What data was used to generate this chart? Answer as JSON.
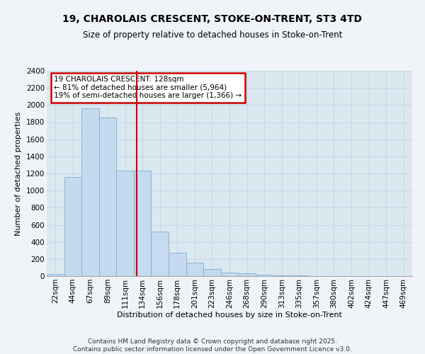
{
  "title_line1": "19, CHAROLAIS CRESCENT, STOKE-ON-TRENT, ST3 4TD",
  "title_line2": "Size of property relative to detached houses in Stoke-on-Trent",
  "xlabel": "Distribution of detached houses by size in Stoke-on-Trent",
  "ylabel": "Number of detached properties",
  "categories": [
    "22sqm",
    "44sqm",
    "67sqm",
    "89sqm",
    "111sqm",
    "134sqm",
    "156sqm",
    "178sqm",
    "201sqm",
    "223sqm",
    "246sqm",
    "268sqm",
    "290sqm",
    "313sqm",
    "335sqm",
    "357sqm",
    "380sqm",
    "402sqm",
    "424sqm",
    "447sqm",
    "469sqm"
  ],
  "values": [
    22,
    1160,
    1960,
    1850,
    1230,
    1230,
    520,
    275,
    155,
    85,
    45,
    35,
    15,
    8,
    5,
    3,
    2,
    1,
    1,
    0,
    0
  ],
  "bar_color": "#c5d9ef",
  "bar_edge_color": "#7bafd4",
  "annotation_line1": "19 CHAROLAIS CRESCENT: 128sqm",
  "annotation_line2": "← 81% of detached houses are smaller (5,964)",
  "annotation_line3": "19% of semi-detached houses are larger (1,366) →",
  "annotation_box_color": "#ffffff",
  "annotation_box_edge": "#cc0000",
  "vline_x": 4.67,
  "vline_color": "#cc0000",
  "ylim": [
    0,
    2400
  ],
  "yticks": [
    0,
    200,
    400,
    600,
    800,
    1000,
    1200,
    1400,
    1600,
    1800,
    2000,
    2200,
    2400
  ],
  "grid_color": "#c8d8e8",
  "plot_bg_color": "#dce8f0",
  "fig_bg_color": "#f0f4f8",
  "footer_line1": "Contains HM Land Registry data © Crown copyright and database right 2025.",
  "footer_line2": "Contains public sector information licensed under the Open Government Licence v3.0.",
  "title1_fontsize": 10,
  "title2_fontsize": 8.5,
  "axis_label_fontsize": 8,
  "tick_fontsize": 7.5,
  "annot_fontsize": 7.5,
  "footer_fontsize": 6.5
}
